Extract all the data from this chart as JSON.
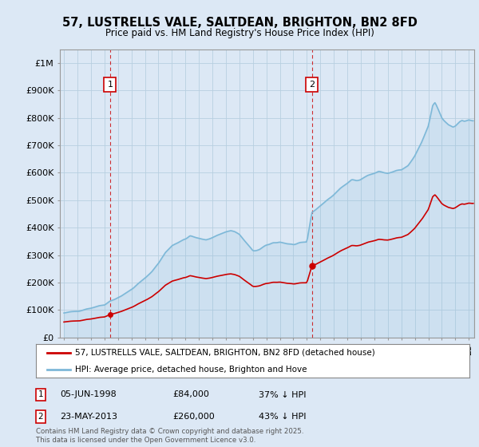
{
  "title": "57, LUSTRELLS VALE, SALTDEAN, BRIGHTON, BN2 8FD",
  "subtitle": "Price paid vs. HM Land Registry's House Price Index (HPI)",
  "ylabel_ticks": [
    "£0",
    "£100K",
    "£200K",
    "£300K",
    "£400K",
    "£500K",
    "£600K",
    "£700K",
    "£800K",
    "£900K",
    "£1M"
  ],
  "ytick_values": [
    0,
    100000,
    200000,
    300000,
    400000,
    500000,
    600000,
    700000,
    800000,
    900000,
    1000000
  ],
  "ylim": [
    0,
    1050000
  ],
  "hpi_color": "#7db8d8",
  "price_color": "#cc0000",
  "vline_color": "#cc0000",
  "marker1_year": 1998.42,
  "marker2_year": 2013.37,
  "sale1_price": 84000,
  "sale2_price": 260000,
  "legend1": "57, LUSTRELLS VALE, SALTDEAN, BRIGHTON, BN2 8FD (detached house)",
  "legend2": "HPI: Average price, detached house, Brighton and Hove",
  "annotation1_date": "05-JUN-1998",
  "annotation1_price": "£84,000",
  "annotation1_hpi": "37% ↓ HPI",
  "annotation2_date": "23-MAY-2013",
  "annotation2_price": "£260,000",
  "annotation2_hpi": "43% ↓ HPI",
  "footnote": "Contains HM Land Registry data © Crown copyright and database right 2025.\nThis data is licensed under the Open Government Licence v3.0.",
  "bg_color": "#dce8f5",
  "plot_bg_color": "#dce8f5",
  "grid_color": "#b8cfe0"
}
